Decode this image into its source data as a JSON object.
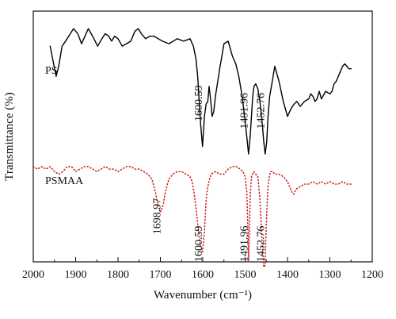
{
  "chart_data": {
    "type": "line",
    "title": "",
    "xlabel": "Wavenumber (cm⁻¹)",
    "ylabel": "Transmittance (%)",
    "xlim": [
      2000,
      1200
    ],
    "x_reversed": true,
    "x_ticks": [
      2000,
      1900,
      1800,
      1700,
      1600,
      1500,
      1400,
      1300,
      1200
    ],
    "y_tick_labels": false,
    "y_units": "relative transmittance (arbitrary, 0 = bottom of plot, 100 = top of plot)",
    "ylim": [
      0,
      100
    ],
    "grid": false,
    "legend": "none",
    "series": [
      {
        "name": "PS",
        "color": "#000000",
        "line_style": "solid",
        "x": [
          1960,
          1953,
          1946,
          1940,
          1932,
          1920,
          1905,
          1895,
          1886,
          1878,
          1870,
          1860,
          1848,
          1838,
          1830,
          1822,
          1815,
          1808,
          1800,
          1790,
          1780,
          1770,
          1760,
          1752,
          1745,
          1735,
          1725,
          1715,
          1705,
          1695,
          1680,
          1660,
          1645,
          1630,
          1622,
          1616,
          1612,
          1605,
          1600.59,
          1596,
          1592,
          1588,
          1585,
          1581,
          1578,
          1574,
          1570,
          1560,
          1550,
          1540,
          1530,
          1522,
          1515,
          1507,
          1500,
          1496,
          1491.96,
          1488,
          1485,
          1482,
          1479,
          1475,
          1470,
          1465,
          1460,
          1456,
          1452.76,
          1449,
          1446,
          1442,
          1438,
          1434,
          1430,
          1420,
          1410,
          1400,
          1392,
          1384,
          1378,
          1370,
          1360,
          1350,
          1345,
          1340,
          1335,
          1330,
          1325,
          1320,
          1310,
          1300,
          1295,
          1290,
          1285,
          1280,
          1275,
          1270,
          1265,
          1260,
          1255,
          1250
        ],
        "y": [
          86,
          80,
          74,
          78,
          86,
          89,
          93,
          91,
          87,
          90,
          93,
          90,
          86,
          89,
          91,
          90,
          88,
          90,
          89,
          86,
          87,
          88,
          92,
          93,
          91,
          89,
          90,
          90,
          89,
          88,
          87,
          89,
          88,
          89,
          86,
          81,
          74,
          55,
          46,
          58,
          63,
          64,
          70,
          64,
          58,
          60,
          66,
          77,
          87,
          88,
          82,
          79,
          74,
          66,
          56,
          50,
          43,
          50,
          58,
          66,
          70,
          71,
          69,
          64,
          56,
          48,
          43,
          48,
          58,
          66,
          70,
          74,
          78,
          72,
          64,
          58,
          61,
          63,
          64,
          62,
          64,
          65,
          67,
          66,
          64,
          65,
          68,
          65,
          68,
          67,
          68,
          71,
          72,
          74,
          76,
          78,
          79,
          78,
          77,
          77
        ]
      },
      {
        "name": "PSMAA",
        "color": "#cc2222",
        "line_style": "dotted",
        "x": [
          2000,
          1990,
          1980,
          1970,
          1960,
          1950,
          1940,
          1930,
          1920,
          1910,
          1900,
          1890,
          1880,
          1870,
          1860,
          1850,
          1840,
          1830,
          1820,
          1810,
          1800,
          1790,
          1780,
          1770,
          1760,
          1750,
          1740,
          1730,
          1720,
          1712,
          1705,
          1698.97,
          1693,
          1688,
          1680,
          1670,
          1660,
          1650,
          1640,
          1630,
          1625,
          1620,
          1615,
          1610,
          1605,
          1600.59,
          1596,
          1592,
          1588,
          1584,
          1580,
          1570,
          1560,
          1550,
          1540,
          1530,
          1520,
          1512,
          1505,
          1500,
          1496,
          1493,
          1491.96,
          1490,
          1488,
          1485,
          1480,
          1475,
          1470,
          1465,
          1460,
          1456,
          1454,
          1452.76,
          1450,
          1447,
          1444,
          1440,
          1435,
          1430,
          1420,
          1410,
          1400,
          1390,
          1385,
          1380,
          1370,
          1360,
          1350,
          1340,
          1330,
          1320,
          1310,
          1300,
          1290,
          1280,
          1270,
          1260,
          1250
        ],
        "y": [
          38,
          37,
          38,
          37,
          38,
          36,
          35,
          36,
          38,
          38,
          36,
          37,
          38,
          38,
          37,
          36,
          37,
          38,
          37,
          37,
          36,
          37,
          38,
          38,
          37,
          37,
          36,
          35,
          33,
          28,
          22,
          20,
          23,
          28,
          33,
          35,
          36,
          36,
          35,
          34,
          32,
          27,
          20,
          12,
          6,
          4,
          12,
          25,
          30,
          33,
          35,
          36,
          35,
          35,
          37,
          38,
          38,
          37,
          36,
          34,
          28,
          12,
          0,
          10,
          26,
          34,
          36,
          35,
          34,
          25,
          8,
          -2,
          -2,
          0,
          15,
          28,
          33,
          36,
          36,
          35,
          35,
          34,
          32,
          28,
          27,
          29,
          30,
          31,
          31,
          32,
          31,
          32,
          31,
          32,
          31,
          31,
          32,
          31,
          31
        ]
      }
    ],
    "annotations": [
      {
        "text": "PS",
        "x": 1972,
        "y": 75
      },
      {
        "text": "PSMAA",
        "x": 1972,
        "y": 31
      },
      {
        "text": "1600.59",
        "x": 1602,
        "y": 56,
        "rotated": true
      },
      {
        "text": "1491.96",
        "x": 1494,
        "y": 53,
        "rotated": true
      },
      {
        "text": "1452.76",
        "x": 1455,
        "y": 53,
        "rotated": true
      },
      {
        "text": "1698.97",
        "x": 1700,
        "y": 11,
        "rotated": true
      },
      {
        "text": "1600.59",
        "x": 1602,
        "y": 0,
        "rotated": true
      },
      {
        "text": "1491.96",
        "x": 1494,
        "y": 0,
        "rotated": true
      },
      {
        "text": "1452.76",
        "x": 1455,
        "y": 0,
        "rotated": true
      }
    ]
  }
}
